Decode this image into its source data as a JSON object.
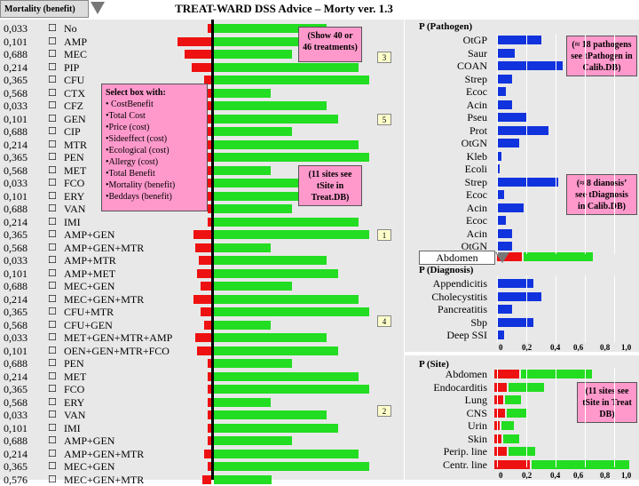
{
  "header": {
    "sort_label": "Mortality (benefit)",
    "title": "TREAT-WARD DSS Advice – Morty ver. 1.3"
  },
  "treatments": [
    {
      "value": "0,033",
      "label": "No"
    },
    {
      "value": "0,101",
      "label": "AMP"
    },
    {
      "value": "0,688",
      "label": "MEC"
    },
    {
      "value": "0,214",
      "label": "PIP"
    },
    {
      "value": "0,365",
      "label": "CFU"
    },
    {
      "value": "0,568",
      "label": "CTX"
    },
    {
      "value": "0,033",
      "label": "CFZ"
    },
    {
      "value": "0,101",
      "label": "GEN"
    },
    {
      "value": "0,688",
      "label": "CIP"
    },
    {
      "value": "0,214",
      "label": "MTR"
    },
    {
      "value": "0,365",
      "label": "PEN"
    },
    {
      "value": "0,568",
      "label": "MET"
    },
    {
      "value": "0,033",
      "label": "FCO"
    },
    {
      "value": "0,101",
      "label": "ERY"
    },
    {
      "value": "0,688",
      "label": "VAN"
    },
    {
      "value": "0,214",
      "label": "IMI"
    },
    {
      "value": "0,365",
      "label": "AMP+GEN"
    },
    {
      "value": "0,568",
      "label": "AMP+GEN+MTR"
    },
    {
      "value": "0,033",
      "label": "AMP+MTR"
    },
    {
      "value": "0,101",
      "label": "AMP+MET"
    },
    {
      "value": "0,688",
      "label": "MEC+GEN"
    },
    {
      "value": "0,214",
      "label": "MEC+GEN+MTR"
    },
    {
      "value": "0,365",
      "label": "CFU+MTR"
    },
    {
      "value": "0,568",
      "label": "CFU+GEN"
    },
    {
      "value": "0,033",
      "label": "MET+GEN+MTR+AMP"
    },
    {
      "value": "0,101",
      "label": "OEN+GEN+MTR+FCO"
    },
    {
      "value": "0,688",
      "label": "PEN"
    },
    {
      "value": "0,214",
      "label": "MET"
    },
    {
      "value": "0,365",
      "label": "FCO"
    },
    {
      "value": "0,568",
      "label": "ERY"
    },
    {
      "value": "0,033",
      "label": "VAN"
    },
    {
      "value": "0,101",
      "label": "IMI"
    },
    {
      "value": "0,688",
      "label": "AMP+GEN"
    },
    {
      "value": "0,214",
      "label": "AMP+GEN+MTR"
    },
    {
      "value": "0,365",
      "label": "MEC+GEN"
    },
    {
      "value": "0,576",
      "label": "MEC+GEN+MTR"
    }
  ],
  "badges": [
    "3",
    "5",
    "1",
    "4",
    "2"
  ],
  "select_menu": {
    "title": "Select box with:",
    "items": [
      "• CostBenefit",
      "•Total Cost",
      "•Price (cost)",
      "•Sideeffect (cost)",
      "•Ecological (cost)",
      "•Allergy (cost)",
      "•Total Benefit",
      "•Mortality (benefit)",
      "•Beddays (benefit)"
    ]
  },
  "show_callout": "(Show 40 or 46 treatments)",
  "sites_callout": "(11 sites see tSite in Treat.DB)",
  "pathogen": {
    "title": "P (Pathogen)",
    "items": [
      "OtGP",
      "Saur",
      "COAN",
      "Strep",
      "Ecoc",
      "Acin",
      "Pseu",
      "Prot",
      "OtGN",
      "Kleb",
      "Ecoli",
      "Strep",
      "Ecoc",
      "Acin",
      "Ecoc",
      "Acin",
      "OtGN"
    ],
    "values": [
      0.3,
      0.12,
      0.45,
      0.1,
      0.06,
      0.1,
      0.2,
      0.35,
      0.15,
      0.03,
      0.02,
      0.42,
      0.05,
      0.18,
      0.06,
      0.1,
      0.1
    ],
    "callout": "(≈ 18 pathogens see tPathogen in Calib.DB)"
  },
  "site_select": "Abdomen",
  "diagnosis": {
    "title": "P (Diagnosis)",
    "items": [
      "Appendicitis",
      "Cholecystitis",
      "Pancreatitis",
      "Sbp",
      "Deep SSI"
    ],
    "values": [
      0.25,
      0.3,
      0.1,
      0.25,
      0.05
    ],
    "callout": "(≈ 8 dianosis’ see tDiagnosis in Calib.DB)",
    "axis": [
      "0",
      "0,2",
      "0,4",
      "0,6",
      "0,8",
      "1,0"
    ]
  },
  "site": {
    "title": "P (Site)",
    "items": [
      "Abdomen",
      "Endocarditis",
      "Lung",
      "CNS",
      "Urin",
      "Skin",
      "Perip. line",
      "Centr. line"
    ],
    "callout": "(11 sites see tSite in Treat DB)",
    "axis": [
      "0",
      "0,2",
      "0,4",
      "0,6",
      "0,8",
      "1,0"
    ]
  },
  "colors": {
    "negative": "#ee1111",
    "positive": "#22dd22",
    "pathogen": "#1133dd",
    "callout": "#ff99cc"
  }
}
